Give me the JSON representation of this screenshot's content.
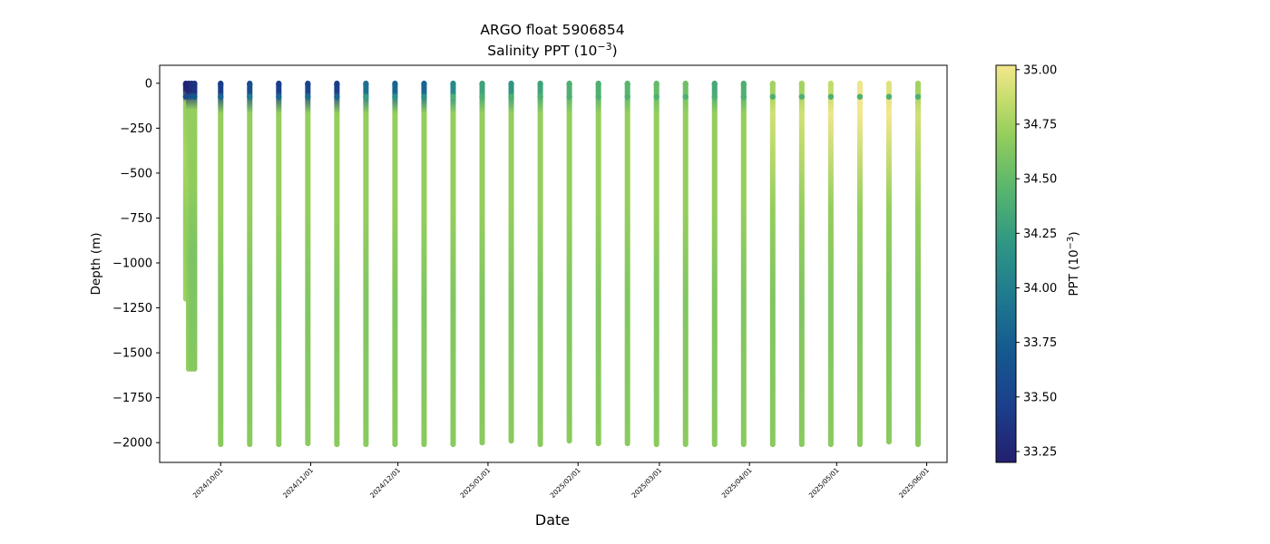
{
  "chart_data": {
    "type": "scatter",
    "title": "ARGO float 5906854",
    "subtitle_prefix": "Salinity PPT (10",
    "subtitle_exp": "−3",
    "subtitle_suffix": ")",
    "xlabel": "Date",
    "ylabel": "Depth (m)",
    "colorbar_label_prefix": "PPT (10",
    "colorbar_label_exp": "−3",
    "colorbar_label_suffix": ")",
    "colormap": "haline-like: low dark navy #231f6e → blue #14508f → teal #2d8c8c → green #5cbb6b → yellow-green #a3d45a → pale yellow #f1e589",
    "colorbar_range": [
      33.2,
      35.02
    ],
    "colorbar_ticks": [
      "33.25",
      "33.50",
      "33.75",
      "34.00",
      "34.25",
      "34.50",
      "34.75",
      "35.00"
    ],
    "ylim": [
      -2110,
      100
    ],
    "y_ticks": [
      "0",
      "−250",
      "−500",
      "−750",
      "−1000",
      "−1250",
      "−1500",
      "−1750",
      "−2000"
    ],
    "x_ticks": [
      "2024/10/01",
      "2024/11/01",
      "2024/12/01",
      "2025/01/01",
      "2025/02/01",
      "2025/03/01",
      "2025/04/01",
      "2025/05/01",
      "2025/06/01"
    ],
    "grid": false,
    "profiles": [
      {
        "date": "2024-09-19",
        "max_depth": 1200,
        "surface_salinity": 33.25,
        "mid_salinity": 34.7
      },
      {
        "date": "2024-09-20",
        "max_depth": 1590,
        "surface_salinity": 33.25,
        "mid_salinity": 34.65
      },
      {
        "date": "2024-09-21",
        "max_depth": 1590,
        "surface_salinity": 33.3,
        "mid_salinity": 34.6
      },
      {
        "date": "2024-09-22",
        "max_depth": 1590,
        "surface_salinity": 33.35,
        "mid_salinity": 34.6
      },
      {
        "date": "2024-10-01",
        "max_depth": 2010,
        "surface_salinity": 33.45,
        "mid_salinity": 34.62
      },
      {
        "date": "2024-10-11",
        "max_depth": 2010,
        "surface_salinity": 33.6,
        "mid_salinity": 34.62
      },
      {
        "date": "2024-10-21",
        "max_depth": 2010,
        "surface_salinity": 33.45,
        "mid_salinity": 34.62
      },
      {
        "date": "2024-10-31",
        "max_depth": 2005,
        "surface_salinity": 33.5,
        "mid_salinity": 34.62
      },
      {
        "date": "2024-11-10",
        "max_depth": 2010,
        "surface_salinity": 33.45,
        "mid_salinity": 34.62
      },
      {
        "date": "2024-11-20",
        "max_depth": 2010,
        "surface_salinity": 33.9,
        "mid_salinity": 34.62
      },
      {
        "date": "2024-11-30",
        "max_depth": 2010,
        "surface_salinity": 33.8,
        "mid_salinity": 34.62
      },
      {
        "date": "2024-12-10",
        "max_depth": 2010,
        "surface_salinity": 33.8,
        "mid_salinity": 34.62
      },
      {
        "date": "2024-12-20",
        "max_depth": 2010,
        "surface_salinity": 34.1,
        "mid_salinity": 34.62
      },
      {
        "date": "2024-12-30",
        "max_depth": 2000,
        "surface_salinity": 34.3,
        "mid_salinity": 34.62
      },
      {
        "date": "2025-01-09",
        "max_depth": 1990,
        "surface_salinity": 34.2,
        "mid_salinity": 34.62
      },
      {
        "date": "2025-01-19",
        "max_depth": 2010,
        "surface_salinity": 34.3,
        "mid_salinity": 34.62
      },
      {
        "date": "2025-01-29",
        "max_depth": 1990,
        "surface_salinity": 34.4,
        "mid_salinity": 34.62
      },
      {
        "date": "2025-02-08",
        "max_depth": 2005,
        "surface_salinity": 34.4,
        "mid_salinity": 34.62
      },
      {
        "date": "2025-02-18",
        "max_depth": 2005,
        "surface_salinity": 34.45,
        "mid_salinity": 34.62
      },
      {
        "date": "2025-02-28",
        "max_depth": 2010,
        "surface_salinity": 34.5,
        "mid_salinity": 34.62
      },
      {
        "date": "2025-03-10",
        "max_depth": 2010,
        "surface_salinity": 34.55,
        "mid_salinity": 34.62
      },
      {
        "date": "2025-03-20",
        "max_depth": 2010,
        "surface_salinity": 34.35,
        "mid_salinity": 34.62
      },
      {
        "date": "2025-03-30",
        "max_depth": 2010,
        "surface_salinity": 34.4,
        "mid_salinity": 34.62
      },
      {
        "date": "2025-04-09",
        "max_depth": 2010,
        "surface_salinity": 34.75,
        "mid_salinity": 34.62
      },
      {
        "date": "2025-04-19",
        "max_depth": 2010,
        "surface_salinity": 34.75,
        "mid_salinity": 34.62
      },
      {
        "date": "2025-04-29",
        "max_depth": 2010,
        "surface_salinity": 34.85,
        "mid_salinity": 34.62
      },
      {
        "date": "2025-05-09",
        "max_depth": 2010,
        "surface_salinity": 35.0,
        "mid_salinity": 34.62
      },
      {
        "date": "2025-05-19",
        "max_depth": 1995,
        "surface_salinity": 34.95,
        "mid_salinity": 34.62
      },
      {
        "date": "2025-05-29",
        "max_depth": 2010,
        "surface_salinity": 34.75,
        "mid_salinity": 34.62
      }
    ]
  }
}
